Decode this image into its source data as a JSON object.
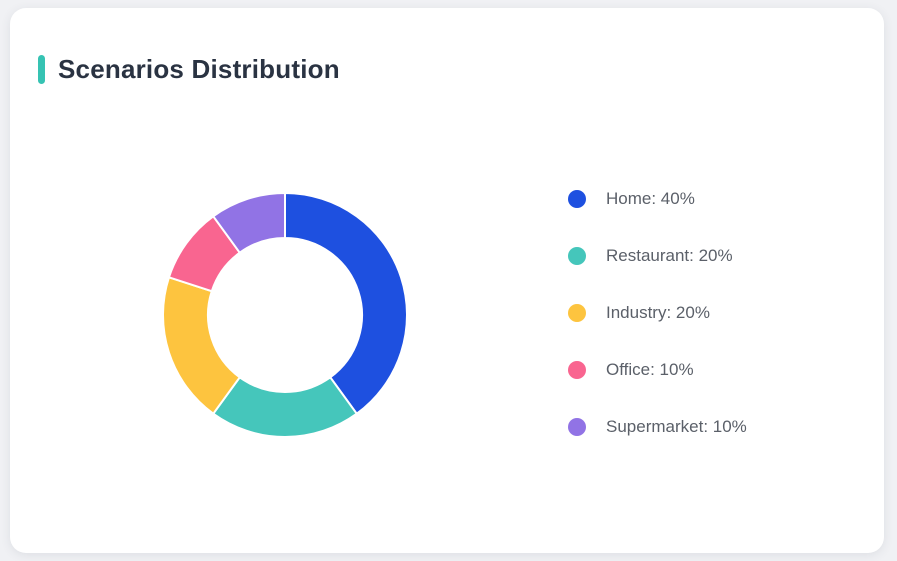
{
  "chart_data": {
    "type": "pie",
    "subtype": "donut",
    "title": "Scenarios Distribution",
    "categories": [
      "Home",
      "Restaurant",
      "Industry",
      "Office",
      "Supermarket"
    ],
    "values": [
      40,
      20,
      20,
      10,
      10
    ],
    "unit": "%",
    "colors": [
      "#1e50e0",
      "#45c6bb",
      "#fdc43f",
      "#f96590",
      "#9173e5"
    ],
    "start_angle_deg": -90,
    "direction": "clockwise",
    "inner_radius_ratio": 0.63,
    "gap_color": "#ffffff",
    "legend_position": "right",
    "legend_format": "{label}: {value}%"
  },
  "legend": {
    "items": [
      {
        "label": "Home: 40%",
        "color": "#1e50e0"
      },
      {
        "label": "Restaurant: 20%",
        "color": "#45c6bb"
      },
      {
        "label": "Industry: 20%",
        "color": "#fdc43f"
      },
      {
        "label": "Office: 10%",
        "color": "#f96590"
      },
      {
        "label": "Supermarket: 10%",
        "color": "#9173e5"
      }
    ]
  },
  "theme": {
    "accent_color": "#36c3b3",
    "title_color": "#2a3342",
    "legend_text_color": "#5b6069",
    "card_background": "#ffffff",
    "page_background": "#f0f1f4"
  }
}
